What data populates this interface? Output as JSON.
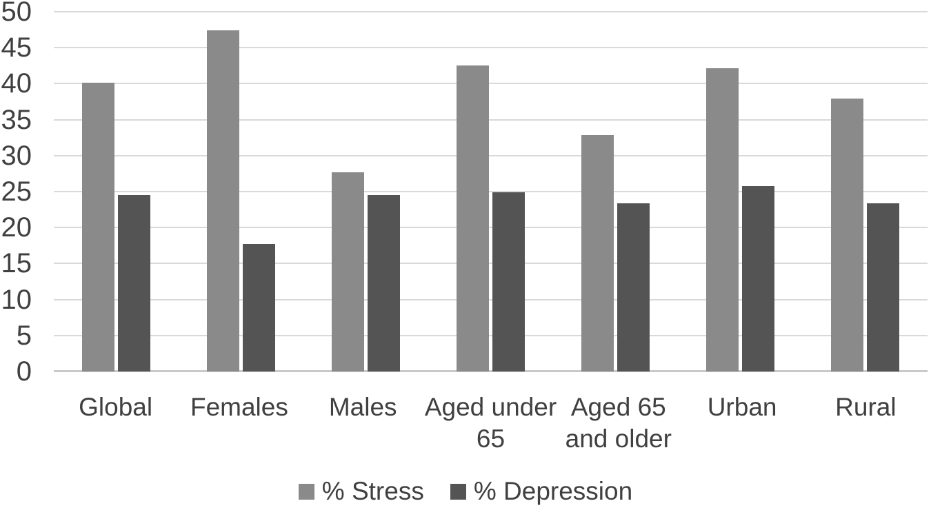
{
  "chart_data": {
    "type": "bar",
    "title": "",
    "xlabel": "",
    "ylabel": "",
    "categories": [
      "Global",
      "Females",
      "Males",
      "Aged under 65",
      "Aged 65 and older",
      "Urban",
      "Rural"
    ],
    "category_lines": [
      [
        "Global"
      ],
      [
        "Females"
      ],
      [
        "Males"
      ],
      [
        "Aged under",
        "65"
      ],
      [
        "Aged 65",
        "and older"
      ],
      [
        "Urban"
      ],
      [
        "Rural"
      ]
    ],
    "series": [
      {
        "name": "% Stress",
        "color": "#8a8a8a",
        "values": [
          40.1,
          47.4,
          27.7,
          42.5,
          32.9,
          42.1,
          37.9
        ]
      },
      {
        "name": "% Depression",
        "color": "#545454",
        "values": [
          24.5,
          17.7,
          24.5,
          24.9,
          23.4,
          25.8,
          23.4
        ]
      }
    ],
    "ylim": [
      0,
      50
    ],
    "yticks": [
      0,
      5,
      10,
      15,
      20,
      25,
      30,
      35,
      40,
      45,
      50
    ],
    "grid": true,
    "legend_position": "bottom",
    "gridline_color": "#d9d9d9",
    "axis_line_color": "#c9c9c9",
    "text_color": "#404040"
  }
}
